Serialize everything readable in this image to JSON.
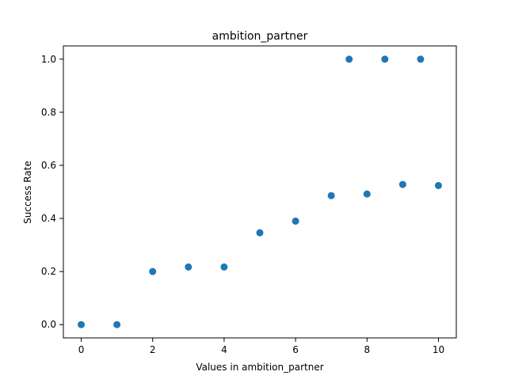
{
  "chart_data": {
    "type": "scatter",
    "title": "ambition_partner",
    "xlabel": "Values in ambition_partner",
    "ylabel": "Success Rate",
    "xlim": [
      -0.5,
      10.5
    ],
    "ylim": [
      -0.05,
      1.05
    ],
    "xticks": [
      0,
      2,
      4,
      6,
      8,
      10
    ],
    "xtick_labels": [
      "0",
      "2",
      "4",
      "6",
      "8",
      "10"
    ],
    "yticks": [
      0.0,
      0.2,
      0.4,
      0.6,
      0.8,
      1.0
    ],
    "ytick_labels": [
      "0.0",
      "0.2",
      "0.4",
      "0.6",
      "0.8",
      "1.0"
    ],
    "grid": false,
    "legend": "none",
    "series": [
      {
        "color": "#1f77b4",
        "points": [
          {
            "x": 0,
            "y": 0.0
          },
          {
            "x": 1,
            "y": 0.0
          },
          {
            "x": 2,
            "y": 0.2
          },
          {
            "x": 3,
            "y": 0.217
          },
          {
            "x": 4,
            "y": 0.217
          },
          {
            "x": 5,
            "y": 0.346
          },
          {
            "x": 6,
            "y": 0.39
          },
          {
            "x": 7,
            "y": 0.486
          },
          {
            "x": 7.5,
            "y": 1.0
          },
          {
            "x": 8,
            "y": 0.492
          },
          {
            "x": 8.5,
            "y": 1.0
          },
          {
            "x": 9,
            "y": 0.528
          },
          {
            "x": 9.5,
            "y": 1.0
          },
          {
            "x": 10,
            "y": 0.524
          }
        ]
      }
    ]
  }
}
